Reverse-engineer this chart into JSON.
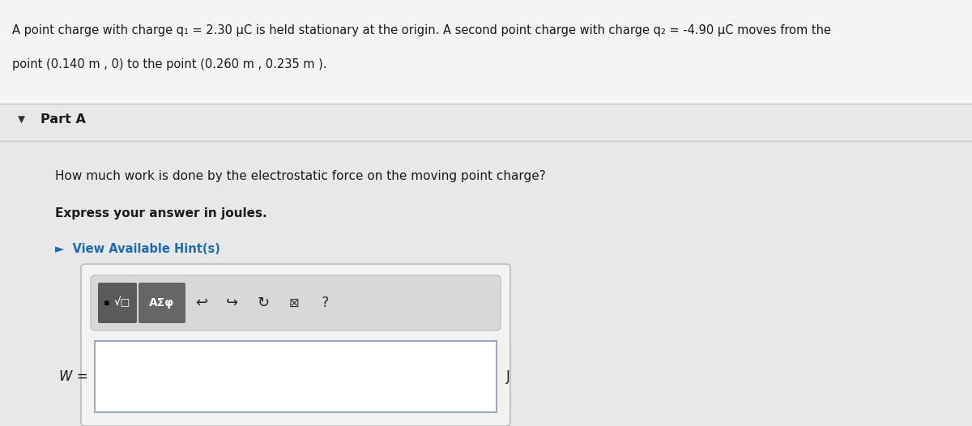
{
  "bg_header": "#f4f4f4",
  "bg_body": "#e8e8e8",
  "text_color": "#1a1a1a",
  "blue_color": "#1a6bb5",
  "separator_color": "#c8c8c8",
  "header_text_line1": "A point charge with charge q₁ = 2.30 μC is held stationary at the origin. A second point charge with charge q₂ = -4.90 μC moves from the",
  "header_text_line2": "point (0.140 m , 0) to the point (0.260 m , 0.235 m ).",
  "part_label": "Part A",
  "question_line1": "How much work is done by the electrostatic force on the moving point charge?",
  "bold_line": "Express your answer in joules.",
  "hint_text": "►  View Available Hint(s)",
  "W_label": "W =",
  "J_label": "J",
  "btn1_color": "#5a5a5a",
  "btn2_color": "#666666",
  "outer_box_bg": "#f0f0f0",
  "toolbar_area_bg": "#e0e0e0",
  "input_box_bg": "#ffffff",
  "input_box_border": "#8a9ab0"
}
